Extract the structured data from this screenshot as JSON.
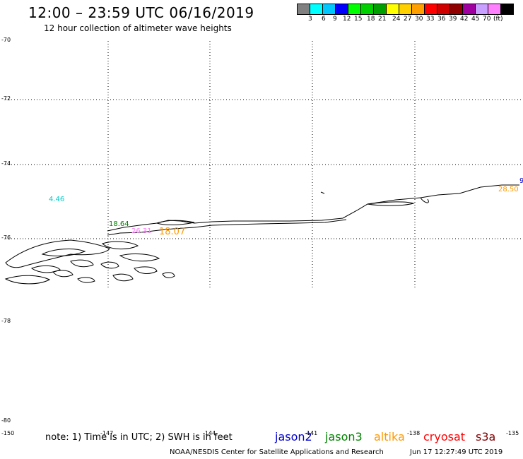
{
  "title": "12:00 – 23:59 UTC 06/16/2019",
  "subtitle": "12 hour collection of altimeter wave heights",
  "colorbar": {
    "colors": [
      "#808080",
      "#00ffff",
      "#00c8ff",
      "#0000ff",
      "#00ff00",
      "#00d000",
      "#00a000",
      "#ffff00",
      "#ffd000",
      "#ffa000",
      "#ff0000",
      "#d00000",
      "#900000",
      "#a000a0",
      "#c8a0ff",
      "#ff80ff",
      "#000000"
    ],
    "labels": [
      "3",
      "6",
      "9",
      "12",
      "15",
      "18",
      "21",
      "24",
      "27",
      "30",
      "33",
      "36",
      "39",
      "42",
      "45",
      "70",
      "(ft)"
    ]
  },
  "lat_ticks": [
    "-70",
    "-72",
    "-74",
    "-76",
    "-78",
    "-80"
  ],
  "lon_ticks": [
    "-150",
    "-147",
    "-144",
    "-141",
    "-138",
    "-135"
  ],
  "wave_labels": [
    {
      "text": "4.46",
      "color": "#00cccc"
    },
    {
      "text": "18.64",
      "color": "#008000"
    },
    {
      "text": "26.31",
      "color": "#ff80ff"
    },
    {
      "text": "18.07",
      "color": "#ff9900"
    },
    {
      "text": "28.50",
      "color": "#ff9900"
    },
    {
      "text": "9",
      "color": "#0000cc"
    }
  ],
  "note": "note: 1) Time is in UTC; 2) SWH is in feet",
  "satellites": [
    {
      "name": "jason2",
      "color": "#0000cc"
    },
    {
      "name": "jason3",
      "color": "#008000"
    },
    {
      "name": "altika",
      "color": "#ff9900"
    },
    {
      "name": "cryosat",
      "color": "#ff0000"
    },
    {
      "name": "s3a",
      "color": "#800000"
    }
  ],
  "credit": "NOAA/NESDIS Center for Satellite Applications and Research",
  "timestamp": "Jun 17 12:27:49 UTC 2019"
}
